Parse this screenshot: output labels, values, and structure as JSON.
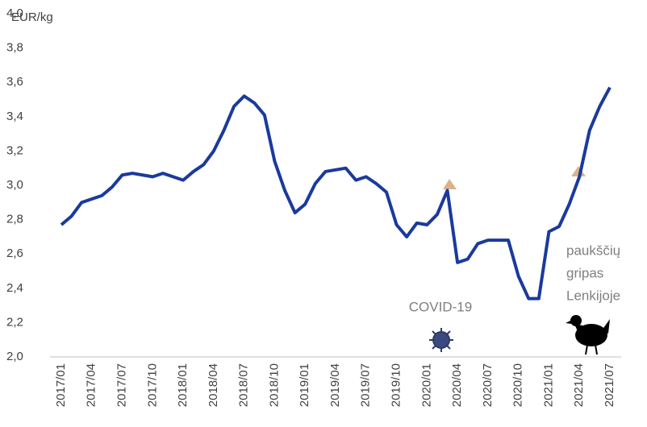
{
  "chart_data": {
    "type": "line",
    "y_label": "EUR/kg",
    "categories": [
      "2017/01",
      null,
      null,
      "2017/04",
      null,
      null,
      "2017/07",
      null,
      null,
      "2017/10",
      null,
      null,
      "2018/01",
      null,
      null,
      "2018/04",
      null,
      null,
      "2018/07",
      null,
      null,
      "2018/10",
      null,
      null,
      "2019/01",
      null,
      null,
      "2019/04",
      null,
      null,
      "2019/07",
      null,
      null,
      "2019/10",
      null,
      null,
      "2020/01",
      null,
      null,
      "2020/04",
      null,
      null,
      "2020/07",
      null,
      null,
      "2020/10",
      null,
      null,
      "2021/01",
      null,
      null,
      "2021/04",
      null,
      null,
      "2021/07"
    ],
    "values": [
      2.77,
      2.82,
      2.9,
      2.92,
      2.94,
      2.99,
      3.06,
      3.07,
      3.06,
      3.05,
      3.07,
      3.05,
      3.03,
      3.08,
      3.12,
      3.2,
      3.32,
      3.46,
      3.52,
      3.48,
      3.41,
      3.14,
      2.97,
      2.84,
      2.89,
      3.01,
      3.08,
      3.09,
      3.1,
      3.03,
      3.05,
      3.01,
      2.96,
      2.77,
      2.7,
      2.78,
      2.77,
      2.83,
      2.97,
      2.55,
      2.57,
      2.66,
      2.68,
      2.68,
      2.68,
      2.47,
      2.34,
      2.34,
      2.73,
      2.76,
      2.89,
      3.05,
      3.32,
      3.46,
      3.57
    ],
    "color": "#1a3a9c",
    "ylim": [
      2.0,
      4.0
    ],
    "yticks": [
      {
        "value": 2.0,
        "label": "2,0"
      },
      {
        "value": 2.2,
        "label": "2,2"
      },
      {
        "value": 2.4,
        "label": "2,4"
      },
      {
        "value": 2.6,
        "label": "2,6"
      },
      {
        "value": 2.8,
        "label": "2,8"
      },
      {
        "value": 3.0,
        "label": "3,0"
      },
      {
        "value": 3.2,
        "label": "3,2"
      },
      {
        "value": 3.4,
        "label": "3,4"
      },
      {
        "value": 3.6,
        "label": "3,6"
      },
      {
        "value": 3.8,
        "label": "3,8"
      },
      {
        "value": 4.0,
        "label": "4,0"
      }
    ],
    "grid": false,
    "annotations": [
      "COVID-19",
      "paukščių",
      "gripas",
      "Lenkijoje"
    ]
  }
}
